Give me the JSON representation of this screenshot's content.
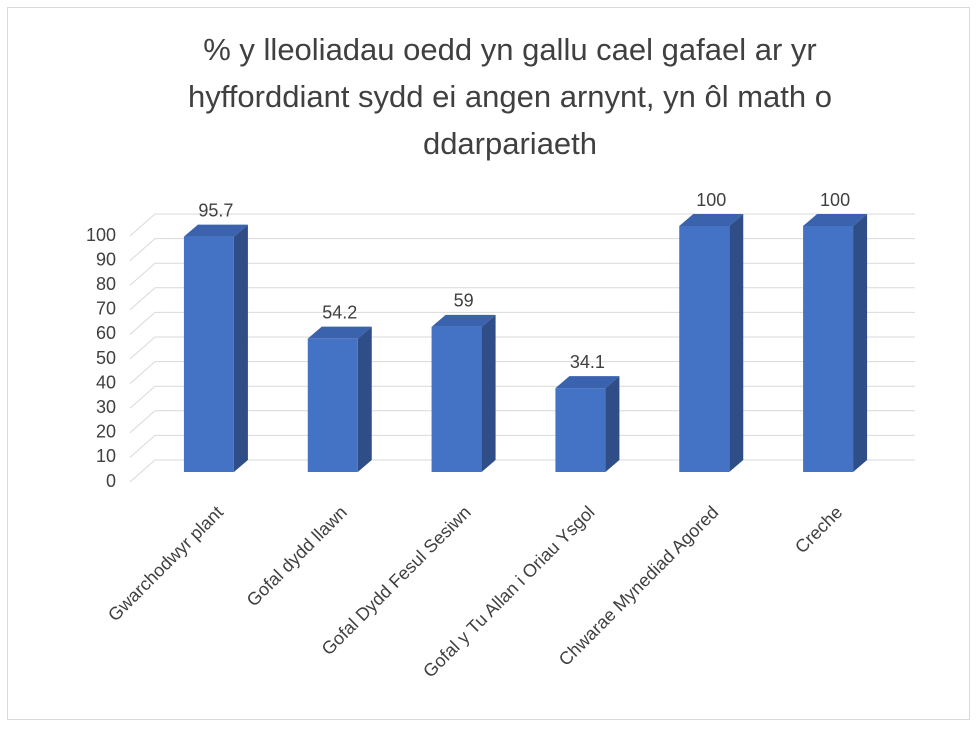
{
  "chart_data": {
    "type": "bar3d",
    "title": "% y lleoliadau oedd yn gallu cael gafael ar yr hyfforddiant sydd ei angen arnynt, yn ôl math o ddarpariaeth",
    "categories": [
      "Gwarchodwyr plant",
      "Gofal dydd llawn",
      "Gofal Dydd Fesul Sesiwn",
      "Gofal y Tu Allan i Oriau Ysgol",
      "Chwarae Mynediad Agored",
      "Creche"
    ],
    "values": [
      95.7,
      54.2,
      59,
      34.1,
      100,
      100
    ],
    "color": "#4472c4",
    "ylim": [
      0,
      100
    ],
    "yticks": [
      0,
      10,
      20,
      30,
      40,
      50,
      60,
      70,
      80,
      90,
      100
    ],
    "grid": true
  }
}
